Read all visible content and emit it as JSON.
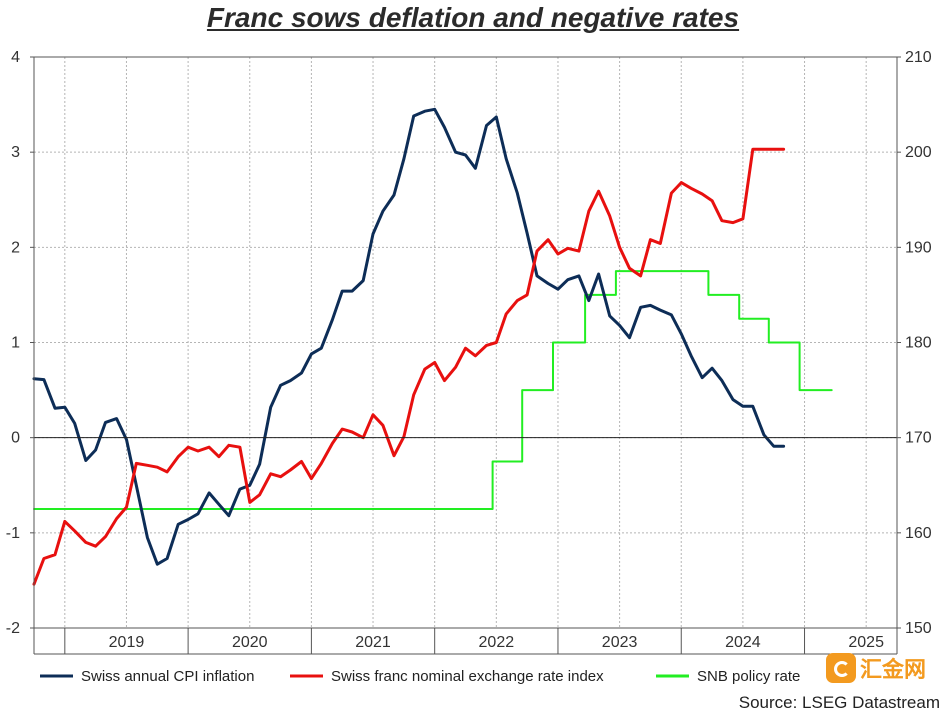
{
  "title": "Franc sows deflation and negative rates",
  "source": "Source: LSEG Datastream",
  "watermark": "汇金网",
  "chart_data": {
    "type": "line",
    "title": "Franc sows deflation and negative rates",
    "x_start": 2018.75,
    "x_end": 2025.75,
    "x_ticks": [
      "2019",
      "2020",
      "2021",
      "2022",
      "2023",
      "2024",
      "2025"
    ],
    "y_left": {
      "lim": [
        -2,
        4
      ],
      "ticks": [
        "-2",
        "-1",
        "0",
        "1",
        "2",
        "3",
        "4"
      ]
    },
    "y_right": {
      "lim": [
        150,
        210
      ],
      "ticks": [
        "150",
        "160",
        "170",
        "180",
        "190",
        "200",
        "210"
      ]
    },
    "grid": true,
    "legend_position": "bottom",
    "series": [
      {
        "name": "Swiss annual CPI inflation",
        "axis": "left",
        "color": "#0d2d57",
        "x": [
          2018.75,
          2018.83,
          2018.92,
          2019.0,
          2019.08,
          2019.17,
          2019.25,
          2019.33,
          2019.42,
          2019.5,
          2019.58,
          2019.67,
          2019.75,
          2019.83,
          2019.92,
          2020.0,
          2020.08,
          2020.17,
          2020.25,
          2020.33,
          2020.42,
          2020.5,
          2020.58,
          2020.67,
          2020.75,
          2020.83,
          2020.92,
          2021.0,
          2021.08,
          2021.17,
          2021.25,
          2021.33,
          2021.42,
          2021.5,
          2021.58,
          2021.67,
          2021.75,
          2021.83,
          2021.92,
          2022.0,
          2022.08,
          2022.17,
          2022.25,
          2022.33,
          2022.42,
          2022.5,
          2022.58,
          2022.67,
          2022.75,
          2022.83,
          2022.92,
          2023.0,
          2023.08,
          2023.17,
          2023.25,
          2023.33,
          2023.42,
          2023.5,
          2023.58,
          2023.67,
          2023.75,
          2023.83,
          2023.92,
          2024.0,
          2024.08,
          2024.17,
          2024.25,
          2024.33,
          2024.42,
          2024.5,
          2024.58,
          2024.67,
          2024.75,
          2024.83
        ],
        "y": [
          0.62,
          0.61,
          0.31,
          0.32,
          0.15,
          -0.24,
          -0.13,
          0.16,
          0.2,
          -0.02,
          -0.5,
          -1.05,
          -1.33,
          -1.27,
          -0.91,
          -0.86,
          -0.8,
          -0.58,
          -0.7,
          -0.82,
          -0.54,
          -0.5,
          -0.28,
          0.32,
          0.55,
          0.6,
          0.68,
          0.88,
          0.94,
          1.24,
          1.54,
          1.54,
          1.65,
          2.14,
          2.38,
          2.55,
          2.93,
          3.38,
          3.43,
          3.45,
          3.26,
          3.0,
          2.97,
          2.83,
          3.28,
          3.37,
          2.93,
          2.57,
          2.15,
          1.7,
          1.62,
          1.56,
          1.66,
          1.7,
          1.44,
          1.72,
          1.28,
          1.18,
          1.05,
          1.37,
          1.39,
          1.34,
          1.29,
          1.09,
          0.86,
          0.63,
          0.73,
          0.6,
          0.4,
          0.33,
          0.33,
          0.03,
          -0.09,
          -0.09
        ]
      },
      {
        "name": "Swiss franc nominal exchange rate index",
        "axis": "right",
        "color": "#e8100f",
        "x": [
          2018.75,
          2018.83,
          2018.92,
          2019.0,
          2019.08,
          2019.17,
          2019.25,
          2019.33,
          2019.42,
          2019.5,
          2019.58,
          2019.67,
          2019.75,
          2019.83,
          2019.92,
          2020.0,
          2020.08,
          2020.17,
          2020.25,
          2020.33,
          2020.42,
          2020.5,
          2020.58,
          2020.67,
          2020.75,
          2020.83,
          2020.92,
          2021.0,
          2021.08,
          2021.17,
          2021.25,
          2021.33,
          2021.42,
          2021.5,
          2021.58,
          2021.67,
          2021.75,
          2021.83,
          2021.92,
          2022.0,
          2022.08,
          2022.17,
          2022.25,
          2022.33,
          2022.42,
          2022.5,
          2022.58,
          2022.67,
          2022.75,
          2022.83,
          2022.92,
          2023.0,
          2023.08,
          2023.17,
          2023.25,
          2023.33,
          2023.42,
          2023.5,
          2023.58,
          2023.67,
          2023.75,
          2023.83,
          2023.92,
          2024.0,
          2024.08,
          2024.17,
          2024.25,
          2024.33,
          2024.42,
          2024.5,
          2024.58,
          2024.67,
          2024.75,
          2024.83
        ],
        "y": [
          154.6,
          157.3,
          157.7,
          161.2,
          160.2,
          159.0,
          158.6,
          159.6,
          161.5,
          162.7,
          167.3,
          167.1,
          166.9,
          166.4,
          168.0,
          169.0,
          168.6,
          169.0,
          168.0,
          169.2,
          169.0,
          163.2,
          164.0,
          166.2,
          165.9,
          166.6,
          167.5,
          165.7,
          167.3,
          169.4,
          170.9,
          170.6,
          170.0,
          172.4,
          171.3,
          168.1,
          170.1,
          174.5,
          177.2,
          177.9,
          176.0,
          177.4,
          179.4,
          178.6,
          179.7,
          180.0,
          183.0,
          184.4,
          185.0,
          189.6,
          190.8,
          189.3,
          189.9,
          189.6,
          193.8,
          195.9,
          193.3,
          190.0,
          187.8,
          187.0,
          190.8,
          190.4,
          195.7,
          196.8,
          196.2,
          195.6,
          194.9,
          192.8,
          192.6,
          193.0,
          200.3,
          200.3,
          200.3,
          200.3
        ]
      },
      {
        "name": "SNB policy rate",
        "axis": "left",
        "color": "#22ee22",
        "x": [
          2018.75,
          2022.47,
          2022.47,
          2022.71,
          2022.71,
          2022.96,
          2022.96,
          2023.22,
          2023.22,
          2023.47,
          2023.47,
          2024.22,
          2024.22,
          2024.47,
          2024.47,
          2024.71,
          2024.71,
          2024.96,
          2024.96,
          2025.22
        ],
        "y": [
          -0.75,
          -0.75,
          -0.25,
          -0.25,
          0.5,
          0.5,
          1.0,
          1.0,
          1.5,
          1.5,
          1.75,
          1.75,
          1.5,
          1.5,
          1.25,
          1.25,
          1.0,
          1.0,
          0.5,
          0.5
        ]
      }
    ]
  }
}
